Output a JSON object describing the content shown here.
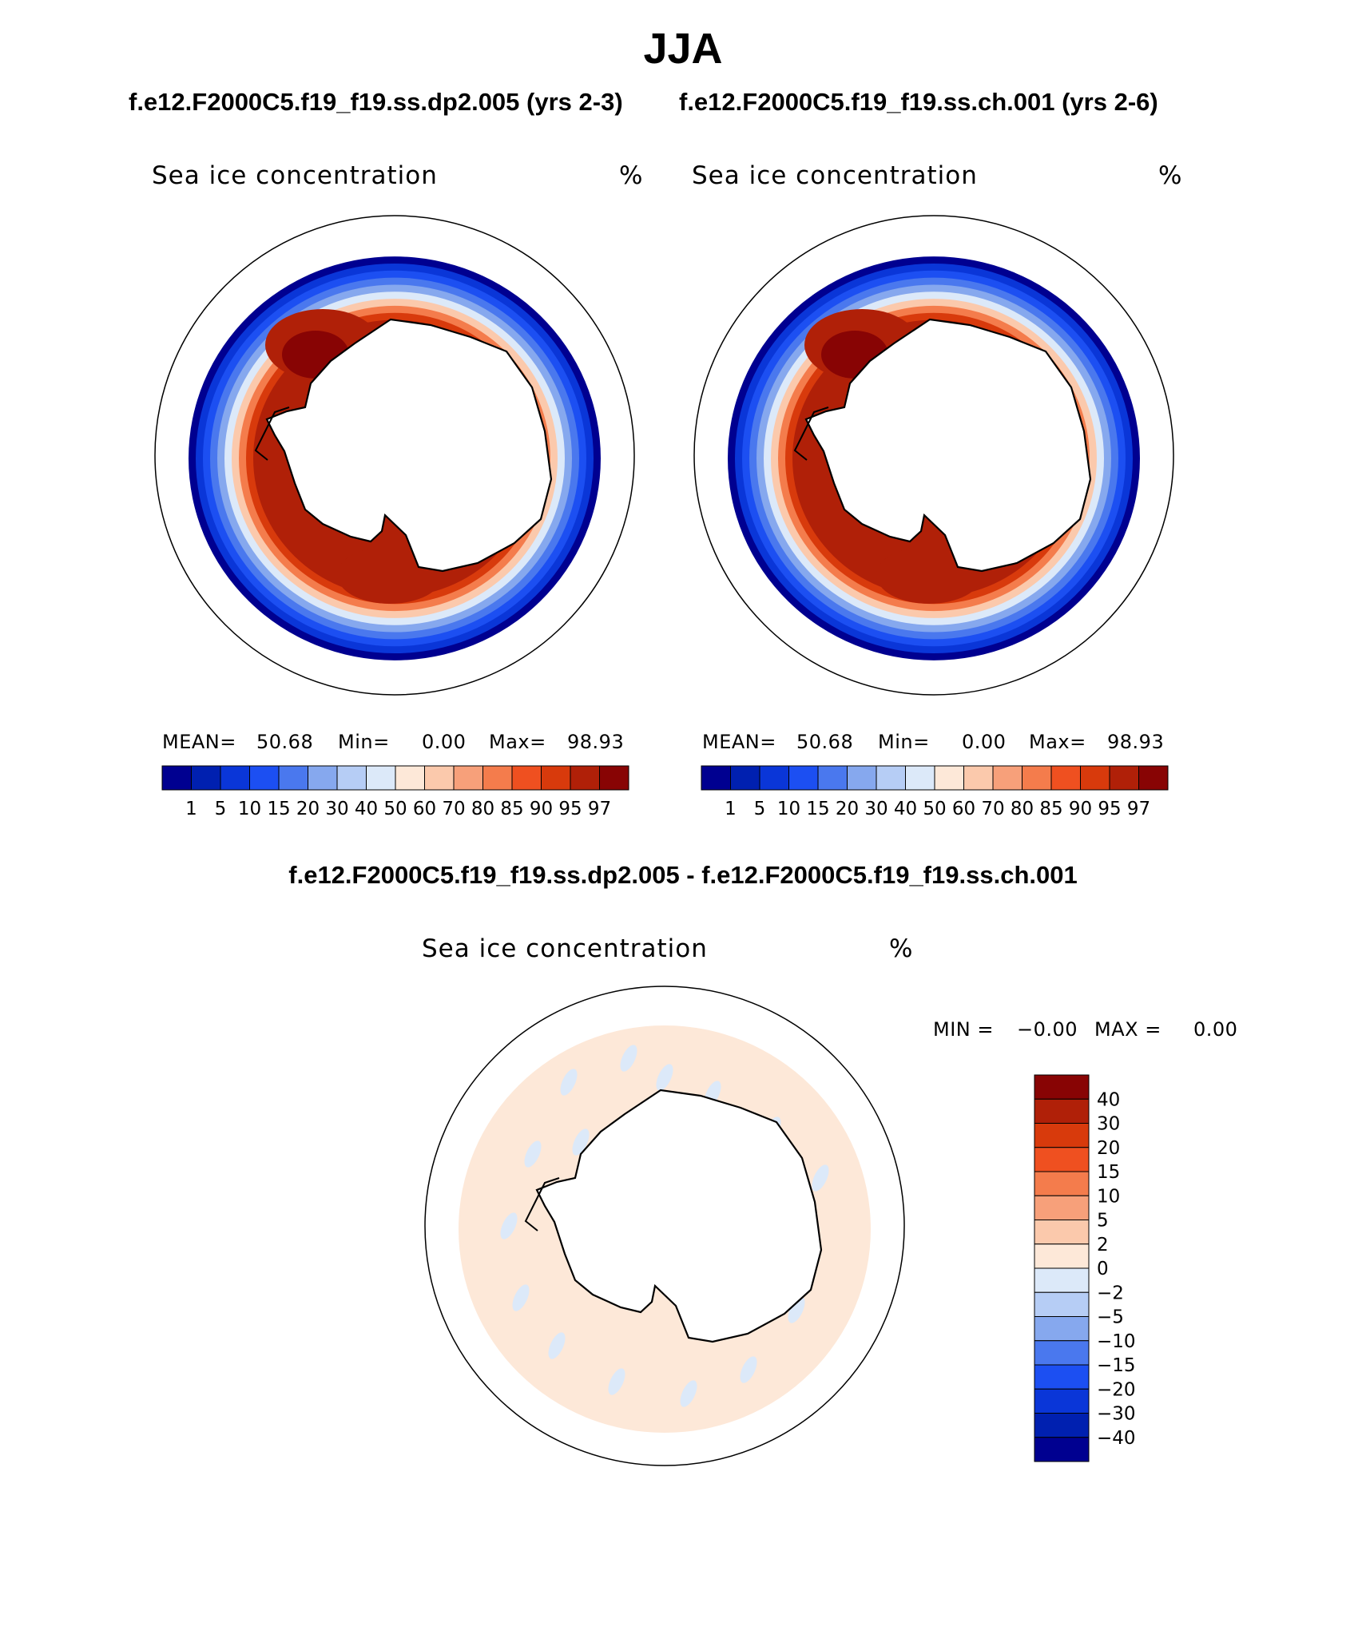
{
  "page_title": "JJA",
  "subtitles": {
    "left": "f.e12.F2000C5.f19_f19.ss.dp2.005 (yrs 2-3)",
    "right": "f.e12.F2000C5.f19_f19.ss.ch.001 (yrs 2-6)",
    "diff": "f.e12.F2000C5.f19_f19.ss.dp2.005 - f.e12.F2000C5.f19_f19.ss.ch.001"
  },
  "colors": {
    "ice_scale": [
      "#000090",
      "#0020b0",
      "#0a36d8",
      "#1c4ff2",
      "#4a78ee",
      "#86a8ee",
      "#b6cdf5",
      "#dce9f9",
      "#fde8d8",
      "#fbc9ac",
      "#f7a07a",
      "#f47c4c",
      "#ef5020",
      "#d83a0c",
      "#b02008",
      "#880404"
    ],
    "diff_scale": [
      "#000090",
      "#0020b0",
      "#0a36d8",
      "#1c4ff2",
      "#4a78ee",
      "#86a8ee",
      "#b6cdf5",
      "#dce9f9",
      "#fde8d8",
      "#fbc9ac",
      "#f7a07a",
      "#f47c4c",
      "#ef5020",
      "#d83a0c",
      "#b02008",
      "#880404"
    ],
    "land": "#ffffff",
    "coast": "#000000"
  },
  "chart_data": [
    {
      "type": "heatmap",
      "projection": "south-polar-stereographic",
      "title": "f.e12.F2000C5.f19_f19.ss.dp2.005 (yrs 2-3)",
      "label_left": "Sea ice concentration",
      "label_right": "%",
      "stats": {
        "mean_label": "MEAN=",
        "mean": "50.68",
        "min_label": "Min=",
        "min": "0.00",
        "max_label": "Max=",
        "max": "98.93"
      },
      "colorbar": {
        "orientation": "horizontal",
        "tick_labels": [
          "1",
          "5",
          "10",
          "15",
          "20",
          "30",
          "40",
          "50",
          "60",
          "70",
          "80",
          "85",
          "90",
          "95",
          "97"
        ]
      }
    },
    {
      "type": "heatmap",
      "projection": "south-polar-stereographic",
      "title": "f.e12.F2000C5.f19_f19.ss.ch.001 (yrs 2-6)",
      "label_left": "Sea ice concentration",
      "label_right": "%",
      "stats": {
        "mean_label": "MEAN=",
        "mean": "50.68",
        "min_label": "Min=",
        "min": "0.00",
        "max_label": "Max=",
        "max": "98.93"
      },
      "colorbar": {
        "orientation": "horizontal",
        "tick_labels": [
          "1",
          "5",
          "10",
          "15",
          "20",
          "30",
          "40",
          "50",
          "60",
          "70",
          "80",
          "85",
          "90",
          "95",
          "97"
        ]
      }
    },
    {
      "type": "heatmap",
      "projection": "south-polar-stereographic",
      "title": "f.e12.F2000C5.f19_f19.ss.dp2.005 - f.e12.F2000C5.f19_f19.ss.ch.001",
      "label_left": "Sea ice concentration",
      "label_right": "%",
      "stats": {
        "min_label": "MIN =",
        "min": "−0.00",
        "max_label": "MAX =",
        "max": "0.00"
      },
      "colorbar": {
        "orientation": "vertical",
        "tick_labels": [
          "40",
          "30",
          "20",
          "15",
          "10",
          "5",
          "2",
          "0",
          "−2",
          "−5",
          "−10",
          "−15",
          "−20",
          "−30",
          "−40"
        ]
      }
    }
  ]
}
